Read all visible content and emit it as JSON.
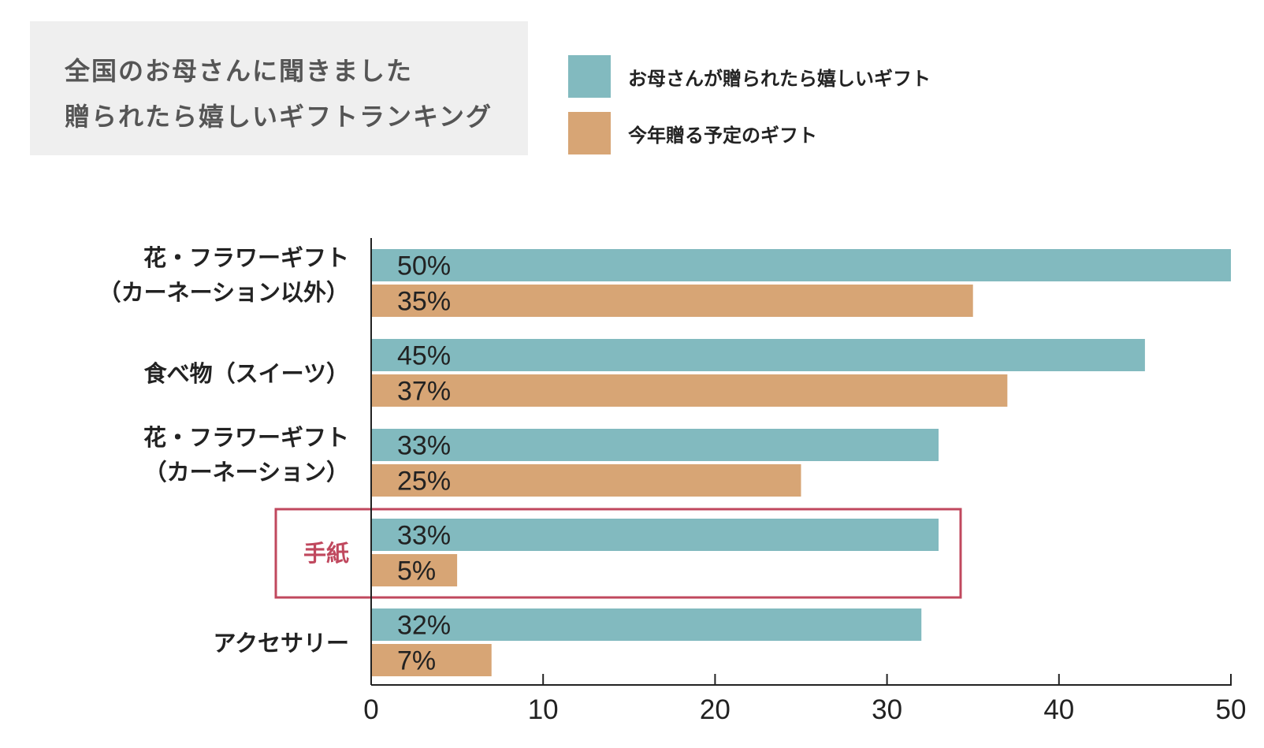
{
  "title": {
    "line1": "全国のお母さんに聞きました",
    "line2": "贈られたら嬉しいギフトランキング"
  },
  "legend": [
    {
      "label": "お母さんが贈られたら嬉しいギフト",
      "color": "#82babf"
    },
    {
      "label": "今年贈る予定のギフト",
      "color": "#d7a575"
    }
  ],
  "chart_data": {
    "type": "bar",
    "orientation": "horizontal",
    "categories": [
      [
        "花・フラワーギフト",
        "（カーネーション以外）"
      ],
      [
        "食べ物（スイーツ）"
      ],
      [
        "花・フラワーギフト",
        "（カーネーション）"
      ],
      [
        "手紙"
      ],
      [
        "アクセサリー"
      ]
    ],
    "series": [
      {
        "name": "お母さんが贈られたら嬉しいギフト",
        "color": "#82babf",
        "values": [
          50,
          45,
          33,
          33,
          32
        ],
        "labels": [
          "50%",
          "45%",
          "33%",
          "33%",
          "32%"
        ]
      },
      {
        "name": "今年贈る予定のギフト",
        "color": "#d7a575",
        "values": [
          35,
          37,
          25,
          5,
          7
        ],
        "labels": [
          "35%",
          "37%",
          "25%",
          "5%",
          "7%"
        ]
      }
    ],
    "xlim": [
      0,
      50
    ],
    "xticks": [
      0,
      10,
      20,
      30,
      40,
      50
    ],
    "xtick_labels": [
      "0",
      "10",
      "20",
      "30",
      "40",
      "50"
    ],
    "highlight_category_index": 3,
    "highlight_color": "#c0485e",
    "label_color": "#222222"
  }
}
